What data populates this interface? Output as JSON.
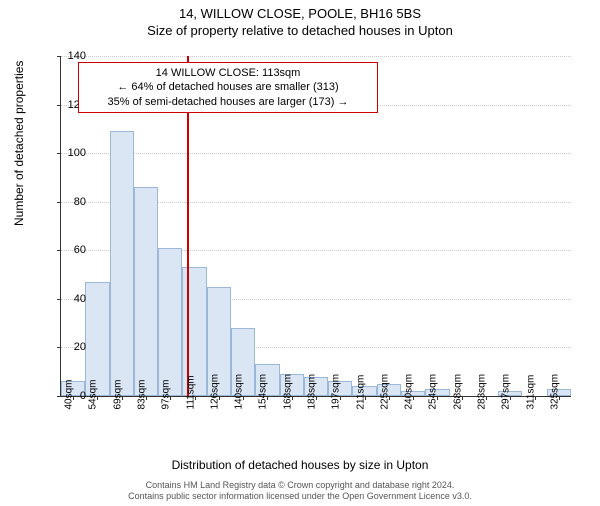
{
  "title_main": "14, WILLOW CLOSE, POOLE, BH16 5BS",
  "title_sub": "Size of property relative to detached houses in Upton",
  "ylabel": "Number of detached properties",
  "xlabel": "Distribution of detached houses by size in Upton",
  "chart": {
    "type": "histogram",
    "ylim": [
      0,
      140
    ],
    "ytick_step": 20,
    "xcategories": [
      "40sqm",
      "54sqm",
      "69sqm",
      "83sqm",
      "97sqm",
      "111sqm",
      "126sqm",
      "140sqm",
      "154sqm",
      "168sqm",
      "183sqm",
      "197sqm",
      "211sqm",
      "225sqm",
      "240sqm",
      "254sqm",
      "268sqm",
      "283sqm",
      "297sqm",
      "311sqm",
      "325sqm"
    ],
    "values": [
      6,
      47,
      109,
      86,
      61,
      53,
      45,
      28,
      13,
      9,
      8,
      6,
      4,
      5,
      2,
      3,
      0,
      0,
      2,
      0,
      3
    ],
    "bar_fill": "#dbe6f5",
    "bar_border": "#9bb8d9",
    "grid_color": "#cccccc",
    "axis_color": "#333333",
    "background_color": "#ffffff",
    "marker_line_color": "#cc0000",
    "marker_category_index": 5,
    "annotation": {
      "line1": "14 WILLOW CLOSE: 113sqm",
      "line2": "← 64% of detached houses are smaller (313)",
      "line3": "35% of semi-detached houses are larger (173) →",
      "border_color": "#cc0000"
    }
  },
  "footer": {
    "line1": "Contains HM Land Registry data © Crown copyright and database right 2024.",
    "line2": "Contains public sector information licensed under the Open Government Licence v3.0."
  }
}
